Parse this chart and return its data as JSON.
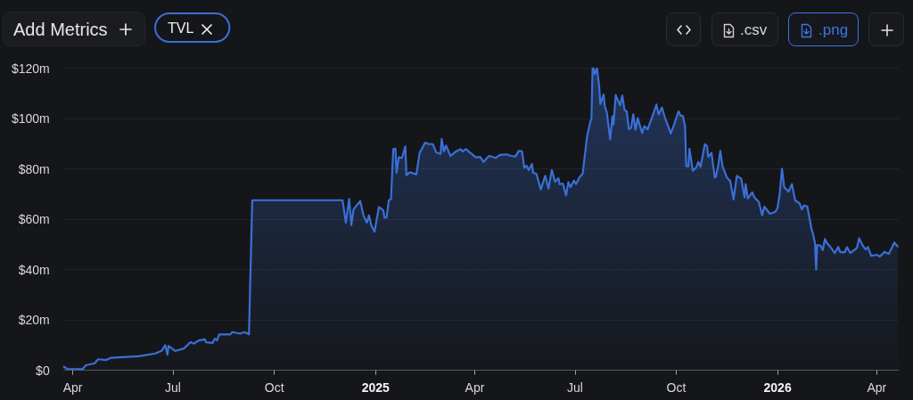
{
  "chart_data": {
    "type": "area",
    "x": [
      "2024-03-24",
      "2024-03-27",
      "2024-04-10",
      "2024-04-13",
      "2024-04-21",
      "2024-04-24",
      "2024-05-01",
      "2024-05-06",
      "2024-05-31",
      "2024-06-15",
      "2024-06-21",
      "2024-06-24",
      "2024-06-26",
      "2024-06-27",
      "2024-07-03",
      "2024-07-11",
      "2024-07-17",
      "2024-07-20",
      "2024-07-24",
      "2024-07-30",
      "2024-07-31",
      "2024-08-06",
      "2024-08-08",
      "2024-08-10",
      "2024-08-12",
      "2024-08-22",
      "2024-08-24",
      "2024-08-31",
      "2024-09-04",
      "2024-09-08",
      "2024-09-11",
      "2024-12-02",
      "2024-12-05",
      "2024-12-08",
      "2024-12-10",
      "2024-12-12",
      "2024-12-18",
      "2024-12-21",
      "2024-12-24",
      "2024-12-26",
      "2024-12-28",
      "2024-12-31",
      "2025-01-04",
      "2025-01-08",
      "2025-01-09",
      "2025-01-11",
      "2025-01-13",
      "2025-01-15",
      "2025-01-17",
      "2025-01-19",
      "2025-01-20",
      "2025-01-22",
      "2025-01-25",
      "2025-01-28",
      "2025-01-29",
      "2025-02-01",
      "2025-02-07",
      "2025-02-10",
      "2025-02-15",
      "2025-02-18",
      "2025-02-22",
      "2025-02-25",
      "2025-03-01",
      "2025-03-02",
      "2025-03-04",
      "2025-03-06",
      "2025-03-10",
      "2025-03-15",
      "2025-03-19",
      "2025-03-21",
      "2025-03-24",
      "2025-03-28",
      "2025-04-02",
      "2025-04-06",
      "2025-04-09",
      "2025-04-14",
      "2025-04-20",
      "2025-04-24",
      "2025-04-30",
      "2025-05-04",
      "2025-05-08",
      "2025-05-11",
      "2025-05-14",
      "2025-05-16",
      "2025-05-18",
      "2025-05-20",
      "2025-05-23",
      "2025-05-24",
      "2025-05-27",
      "2025-05-31",
      "2025-06-04",
      "2025-06-07",
      "2025-06-10",
      "2025-06-13",
      "2025-06-16",
      "2025-06-17",
      "2025-06-20",
      "2025-06-23",
      "2025-06-25",
      "2025-06-27",
      "2025-06-30",
      "2025-07-02",
      "2025-07-05",
      "2025-07-08",
      "2025-07-12",
      "2025-07-15",
      "2025-07-16",
      "2025-07-17",
      "2025-07-18",
      "2025-07-19",
      "2025-07-21",
      "2025-07-23",
      "2025-07-24",
      "2025-07-27",
      "2025-07-28",
      "2025-07-30",
      "2025-08-02",
      "2025-08-04",
      "2025-08-05",
      "2025-08-07",
      "2025-08-09",
      "2025-08-11",
      "2025-08-13",
      "2025-08-15",
      "2025-08-17",
      "2025-08-19",
      "2025-08-21",
      "2025-08-23",
      "2025-08-25",
      "2025-08-27",
      "2025-08-31",
      "2025-09-02",
      "2025-09-05",
      "2025-09-09",
      "2025-09-13",
      "2025-09-15",
      "2025-09-18",
      "2025-09-21",
      "2025-09-23",
      "2025-09-26",
      "2025-09-29",
      "2025-10-03",
      "2025-10-05",
      "2025-10-07",
      "2025-10-09",
      "2025-10-10",
      "2025-10-12",
      "2025-10-13",
      "2025-10-16",
      "2025-10-19",
      "2025-10-21",
      "2025-10-23",
      "2025-10-27",
      "2025-10-29",
      "2025-10-30",
      "2025-11-02",
      "2025-11-05",
      "2025-11-06",
      "2025-11-08",
      "2025-11-10",
      "2025-11-12",
      "2025-11-16",
      "2025-11-19",
      "2025-11-22",
      "2025-11-25",
      "2025-11-29",
      "2025-12-02",
      "2025-12-03",
      "2025-12-05",
      "2025-12-09",
      "2025-12-11",
      "2025-12-15",
      "2025-12-18",
      "2025-12-20",
      "2025-12-25",
      "2025-12-30",
      "2026-01-01",
      "2026-01-03",
      "2026-01-05",
      "2026-01-07",
      "2026-01-11",
      "2026-01-14",
      "2026-01-17",
      "2026-01-21",
      "2026-01-23",
      "2026-01-25",
      "2026-01-28",
      "2026-02-01",
      "2026-02-02",
      "2026-02-04",
      "2026-02-05",
      "2026-02-06",
      "2026-02-09",
      "2026-02-11",
      "2026-02-13",
      "2026-02-15",
      "2026-02-18",
      "2026-02-22",
      "2026-02-25",
      "2026-02-27",
      "2026-03-03",
      "2026-03-05",
      "2026-03-08",
      "2026-03-14",
      "2026-03-16",
      "2026-03-19",
      "2026-03-22",
      "2026-03-24",
      "2026-03-27",
      "2026-04-01",
      "2026-04-04",
      "2026-04-08",
      "2026-04-10",
      "2026-04-12",
      "2026-04-17",
      "2026-04-20"
    ],
    "series": [
      {
        "name": "TVL",
        "color": "#3a6fd6",
        "values": [
          1.4,
          0.6,
          0.5,
          2.0,
          2.8,
          4.4,
          4.1,
          5.0,
          5.6,
          6.7,
          7.9,
          10.0,
          6.2,
          9.7,
          7.7,
          8.7,
          11.2,
          10.6,
          11.8,
          12.3,
          11.2,
          10.9,
          12.6,
          11.9,
          14.3,
          14.3,
          15.2,
          14.6,
          15.2,
          14.3,
          67.6,
          67.6,
          58.7,
          68.1,
          57.7,
          64.0,
          67.3,
          61.6,
          58.7,
          61.6,
          57.7,
          55.1,
          64.9,
          63.6,
          60.7,
          60.7,
          67.5,
          68.1,
          87.8,
          88.1,
          78.5,
          84.6,
          84.4,
          89.0,
          77.5,
          78.7,
          77.9,
          86.4,
          90.5,
          89.9,
          89.9,
          86.6,
          86.0,
          91.9,
          87.0,
          89.3,
          85.2,
          87.0,
          87.9,
          87.0,
          87.9,
          86.4,
          84.6,
          84.8,
          82.8,
          85.2,
          84.4,
          85.6,
          85.8,
          85.2,
          85.0,
          87.2,
          87.0,
          80.5,
          81.3,
          79.6,
          82.0,
          78.5,
          78.1,
          71.9,
          77.3,
          72.2,
          79.6,
          74.9,
          76.4,
          74.0,
          74.2,
          69.5,
          74.8,
          72.8,
          75.4,
          74.0,
          76.6,
          78.1,
          92.9,
          98.8,
          100.0,
          120,
          120,
          117.7,
          120,
          112.9,
          105.8,
          109.6,
          105.3,
          102.3,
          91.7,
          100.9,
          97.6,
          109.4,
          107.3,
          105.3,
          109.2,
          103.5,
          102.9,
          95.8,
          96.4,
          101.7,
          95.5,
          100.2,
          94.3,
          97.0,
          95.8,
          100.5,
          105.6,
          101.7,
          104.4,
          100.0,
          97.8,
          94.1,
          97.6,
          102.9,
          101.1,
          101.1,
          97.0,
          81.1,
          81.1,
          88.1,
          79.3,
          80.5,
          82.8,
          80.8,
          89.9,
          89.1,
          84.8,
          86.4,
          76.6,
          77.0,
          81.1,
          87.2,
          81.1,
          76.6,
          75.2,
          67.9,
          77.3,
          76.1,
          68.7,
          74.0,
          68.3,
          70.7,
          68.7,
          66.9,
          61.6,
          65.1,
          62.2,
          63.0,
          64.6,
          70.4,
          80.1,
          72.8,
          71.0,
          74.0,
          67.5,
          66.3,
          64.0,
          65.5,
          65.1,
          55.7,
          54.5,
          50.4,
          40.0,
          49.8,
          49.5,
          47.8,
          52.2,
          50.4,
          49.0,
          46.6,
          49.0,
          46.9,
          46.9,
          49.0,
          46.6,
          48.6,
          52.5,
          49.8,
          48.0,
          49.0,
          45.5,
          45.9,
          45.2,
          47.1,
          46.6,
          46.3,
          50.8,
          49.2
        ]
      }
    ],
    "xlim": [
      "2024-03-24",
      "2026-04-21"
    ],
    "xticks": [
      {
        "value": "2024-04-01",
        "label": "Apr"
      },
      {
        "value": "2024-07-01",
        "label": "Jul"
      },
      {
        "value": "2024-10-01",
        "label": "Oct"
      },
      {
        "value": "2025-01-01",
        "label": "2025"
      },
      {
        "value": "2025-04-01",
        "label": "Apr"
      },
      {
        "value": "2025-07-01",
        "label": "Jul"
      },
      {
        "value": "2025-10-01",
        "label": "Oct"
      },
      {
        "value": "2026-01-01",
        "label": "2026"
      },
      {
        "value": "2026-04-01",
        "label": "Apr"
      }
    ],
    "ylim": [
      0,
      120
    ],
    "yticks": [
      {
        "value": 0,
        "label": "$0"
      },
      {
        "value": 20,
        "label": "$20m"
      },
      {
        "value": 40,
        "label": "$40m"
      },
      {
        "value": 60,
        "label": "$60m"
      },
      {
        "value": 80,
        "label": "$80m"
      },
      {
        "value": 100,
        "label": "$100m"
      },
      {
        "value": 120,
        "label": "$120m"
      }
    ],
    "grid": "y",
    "legend": "top left",
    "annotations": [
      "Add Metrics",
      ".csv",
      ".png"
    ]
  }
}
